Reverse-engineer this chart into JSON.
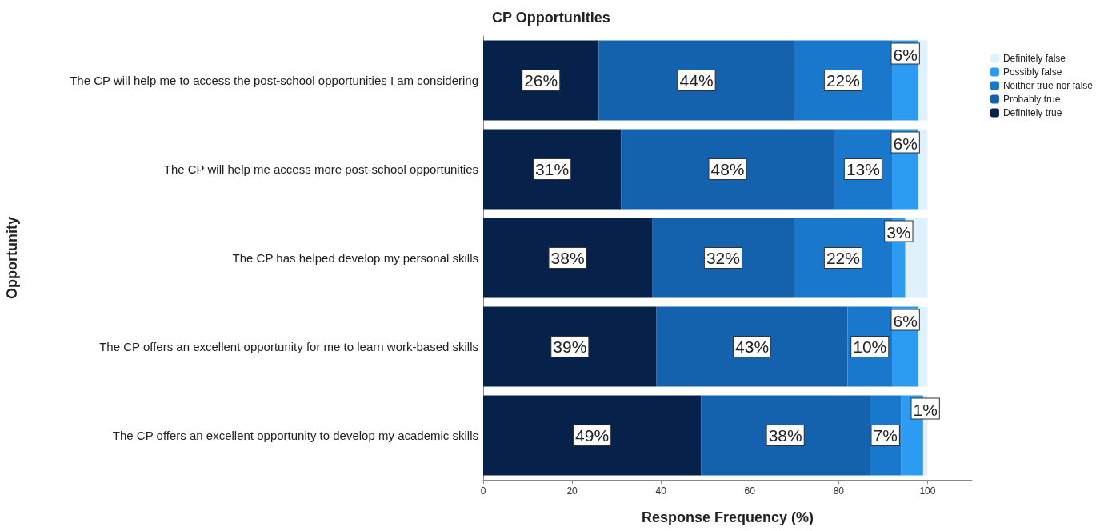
{
  "chart_data": {
    "type": "bar",
    "orientation": "horizontal",
    "stacked": true,
    "title": "CP Opportunities",
    "xlabel": "Response Frequency (%)",
    "ylabel": "Opportunity",
    "categories": [
      "The CP will help me to access the post-school opportunities I am considering",
      "The CP will help me access more post-school opportunities",
      "The CP has helped develop my personal skills",
      "The CP offers an excellent opportunity for me to learn work-based skills",
      "The CP offers an excellent opportunity to develop my academic skills"
    ],
    "series": [
      {
        "name": "Definitely true",
        "color": "#06224a",
        "values": [
          26,
          31,
          38,
          39,
          49
        ],
        "value_labels": [
          "26%",
          "31%",
          "38%",
          "39%",
          "49%"
        ]
      },
      {
        "name": "Probably true",
        "color": "#1462ad",
        "values": [
          44,
          48,
          32,
          43,
          38
        ],
        "value_labels": [
          "44%",
          "48%",
          "32%",
          "43%",
          "38%"
        ]
      },
      {
        "name": "Neither true nor false",
        "color": "#1a78cc",
        "values": [
          22,
          13,
          22,
          10,
          7
        ],
        "value_labels": [
          "22%",
          "13%",
          "22%",
          "10%",
          "7%"
        ]
      },
      {
        "name": "Possibly false",
        "color": "#2b9cf2",
        "values": [
          6,
          6,
          3,
          6,
          5
        ],
        "value_labels": [
          "6%",
          "6%",
          "3%",
          "6%",
          null
        ]
      },
      {
        "name": "Definitely false",
        "color": "#dff1fd",
        "values": [
          2,
          2,
          5,
          2,
          1
        ],
        "value_labels": [
          null,
          null,
          null,
          null,
          "1%"
        ]
      }
    ],
    "xlim": [
      0,
      110
    ],
    "xticks": [
      0,
      20,
      40,
      60,
      80,
      100
    ],
    "grid": false,
    "legend": "top right"
  }
}
